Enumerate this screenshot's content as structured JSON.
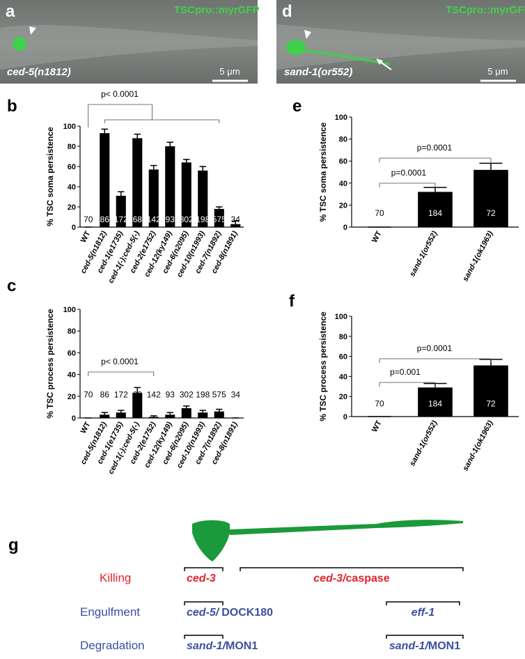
{
  "images": [
    {
      "label": "a",
      "marker": "TSCpro::myrGFP",
      "genotype": "ced-5(n1812)",
      "scale": "5 μm"
    },
    {
      "label": "d",
      "marker": "TSCpro::myrGFP",
      "genotype": "sand-1(or552)",
      "scale": "5 μm"
    }
  ],
  "chart_data": [
    {
      "type": "bar",
      "panel": "b",
      "ylabel": "% TSC soma persistence",
      "categories": [
        "WT",
        "ced-5(n1812)",
        "ced-1(e1735)",
        "ced-1(-);ced-5(-)",
        "ced-2(e1752)",
        "ced-12(ky149)",
        "ced-6(n2095)",
        "ced-10(n1993)",
        "ced-7(n1892)",
        "ced-8(n1891)"
      ],
      "values": [
        0,
        93,
        31,
        88,
        57,
        80,
        64,
        56,
        18,
        3
      ],
      "errors": [
        0,
        4,
        4,
        4,
        4,
        4,
        3,
        4,
        2,
        3
      ],
      "n": [
        70,
        86,
        172,
        68,
        142,
        93,
        302,
        198,
        575,
        34
      ],
      "color": "#000000",
      "ylim": [
        0,
        100
      ],
      "yticks": [
        0,
        20,
        40,
        60,
        80,
        100
      ],
      "annotations": [
        {
          "text": "p< 0.0001"
        }
      ]
    },
    {
      "type": "bar",
      "panel": "c",
      "ylabel": "% TSC process persistence",
      "categories": [
        "WT",
        "ced-5(n1812)",
        "ced-1(e1735)",
        "ced-1(-);ced-5(-)",
        "ced-2(e1752)",
        "ced-12(ky149)",
        "ced-6(n2095)",
        "ced-10(n1993)",
        "ced-7(n1892)",
        "ced-8(n1891)"
      ],
      "values": [
        0,
        3,
        5,
        23,
        1,
        3,
        9,
        5,
        6,
        0
      ],
      "errors": [
        0,
        2,
        2,
        5,
        1,
        2,
        2,
        2,
        2,
        0
      ],
      "n": [
        70,
        86,
        172,
        68,
        142,
        93,
        302,
        198,
        575,
        34
      ],
      "color": "#000000",
      "ylim": [
        0,
        100
      ],
      "yticks": [
        0,
        20,
        40,
        60,
        80,
        100
      ],
      "annotations": [
        {
          "text": "p< 0.0001"
        }
      ]
    },
    {
      "type": "bar",
      "panel": "e",
      "ylabel": "% TSC soma persistence",
      "categories": [
        "WT",
        "sand-1(or552)",
        "sand-1(ok1963)"
      ],
      "values": [
        0,
        32,
        52
      ],
      "errors": [
        0,
        4,
        6
      ],
      "n": [
        70,
        184,
        72
      ],
      "color": "#000000",
      "ylim": [
        0,
        100
      ],
      "yticks": [
        0,
        20,
        40,
        60,
        80,
        100
      ],
      "annotations": [
        {
          "text": "p=0.0001"
        },
        {
          "text": "p=0.0001"
        }
      ]
    },
    {
      "type": "bar",
      "panel": "f",
      "ylabel": "% TSC process persistence",
      "categories": [
        "WT",
        "sand-1(or552)",
        "sand-1(ok1963)"
      ],
      "values": [
        0,
        29,
        51
      ],
      "errors": [
        0,
        4,
        6
      ],
      "n": [
        70,
        184,
        72
      ],
      "color": "#000000",
      "ylim": [
        0,
        100
      ],
      "yticks": [
        0,
        20,
        40,
        60,
        80,
        100
      ],
      "annotations": [
        {
          "text": "p=0.001"
        },
        {
          "text": "p=0.0001"
        }
      ]
    }
  ],
  "diagram": {
    "label": "g",
    "rows": [
      {
        "process": "Killing",
        "soma": {
          "gene": "ced-3"
        },
        "neurite": {
          "gene": "ced-3/",
          "product": "caspase"
        }
      },
      {
        "process": "Engulfment",
        "soma": {
          "gene": "ced-5/",
          "product": "DOCK180"
        },
        "neurite": {
          "gene": "eff-1"
        }
      },
      {
        "process": "Degradation",
        "soma": {
          "gene": "sand-1/",
          "product": "MON1"
        },
        "neurite": {
          "gene": "sand-1/",
          "product": "MON1"
        }
      }
    ]
  }
}
